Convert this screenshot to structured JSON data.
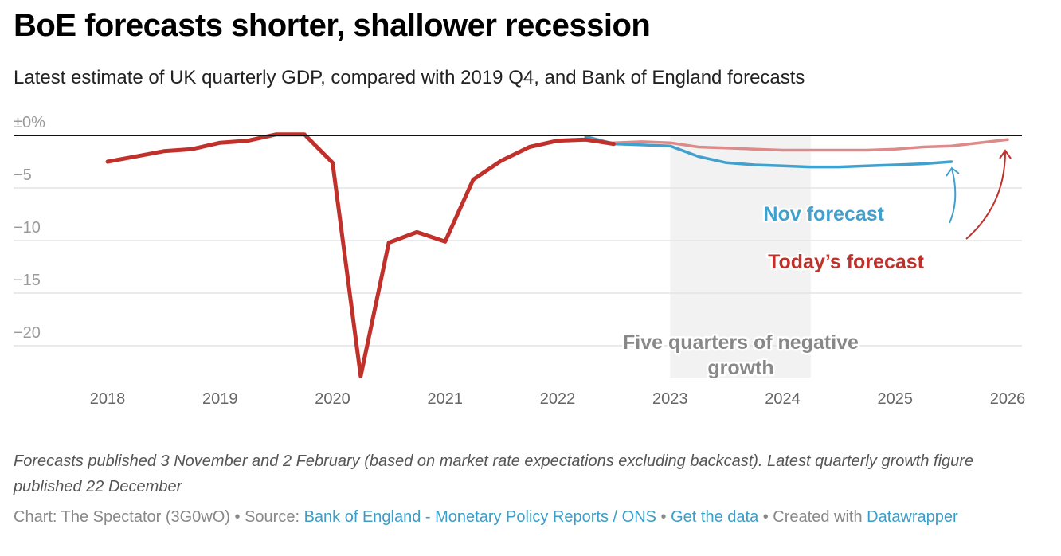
{
  "header": {
    "title": "BoE forecasts shorter, shallower recession",
    "subtitle": "Latest estimate of UK quarterly GDP, compared with 2019 Q4, and Bank of England forecasts"
  },
  "colors": {
    "actual": "#c0312b",
    "nov_forecast": "#41a0cc",
    "today_forecast": "#dc8a8a",
    "shade": "#f2f2f2",
    "gridline": "#e3e3e3",
    "zero_line": "#111111",
    "link": "#3a9ec8"
  },
  "chart_data": {
    "type": "line",
    "title": "BoE forecasts shorter, shallower recession",
    "subtitle": "Latest estimate of UK quarterly GDP, compared with 2019 Q4, and Bank of England forecasts",
    "xlabel": "",
    "ylabel": "",
    "x_unit": "year (quarterly points)",
    "xlim": [
      2018,
      2026
    ],
    "ylim": [
      -23.5,
      0.5
    ],
    "x_ticks": [
      2018,
      2019,
      2020,
      2021,
      2022,
      2023,
      2024,
      2025,
      2026
    ],
    "x_tick_labels": [
      "2018",
      "2019",
      "2020",
      "2021",
      "2022",
      "2023",
      "2024",
      "2025",
      "2026"
    ],
    "y_ticks": [
      0,
      -5,
      -10,
      -15,
      -20
    ],
    "y_tick_labels": [
      "±0%",
      "−5",
      "−10",
      "−15",
      "−20"
    ],
    "grid": true,
    "legend": "inline-annotations",
    "series": [
      {
        "name": "Latest estimate",
        "key": "actual",
        "x": [
          2018.0,
          2018.25,
          2018.5,
          2018.75,
          2019.0,
          2019.25,
          2019.5,
          2019.75,
          2020.0,
          2020.25,
          2020.5,
          2020.75,
          2021.0,
          2021.25,
          2021.5,
          2021.75,
          2022.0,
          2022.25,
          2022.5
        ],
        "values": [
          -2.5,
          -2.0,
          -1.5,
          -1.3,
          -0.7,
          -0.5,
          0.1,
          0.1,
          -2.6,
          -22.9,
          -10.2,
          -9.2,
          -10.1,
          -4.2,
          -2.4,
          -1.1,
          -0.5,
          -0.4,
          -0.8
        ]
      },
      {
        "name": "Nov forecast",
        "key": "nov_forecast",
        "x": [
          2022.25,
          2022.5,
          2022.75,
          2023.0,
          2023.25,
          2023.5,
          2023.75,
          2024.0,
          2024.25,
          2024.5,
          2024.75,
          2025.0,
          2025.25,
          2025.5
        ],
        "values": [
          -0.1,
          -0.8,
          -0.9,
          -1.0,
          -2.0,
          -2.6,
          -2.8,
          -2.9,
          -3.0,
          -3.0,
          -2.9,
          -2.8,
          -2.7,
          -2.5
        ]
      },
      {
        "name": "Today's forecast",
        "key": "today_forecast",
        "x": [
          2022.5,
          2022.75,
          2023.0,
          2023.25,
          2023.5,
          2023.75,
          2024.0,
          2024.25,
          2024.5,
          2024.75,
          2025.0,
          2025.25,
          2025.5,
          2025.75,
          2026.0
        ],
        "values": [
          -0.7,
          -0.6,
          -0.7,
          -1.1,
          -1.2,
          -1.3,
          -1.4,
          -1.4,
          -1.4,
          -1.4,
          -1.3,
          -1.1,
          -1.0,
          -0.7,
          -0.4
        ]
      }
    ],
    "shaded_range": {
      "x_start": 2023.0,
      "x_end": 2024.25,
      "label": "Five quarters of negative growth"
    },
    "annotations": [
      {
        "text": "Nov forecast",
        "series": "nov_forecast"
      },
      {
        "text": "Today’s forecast",
        "series": "today_forecast"
      }
    ]
  },
  "annotations": {
    "shade_label_line1": "Five quarters of negative",
    "shade_label_line2": "growth",
    "nov_label": "Nov forecast",
    "today_label": "Today’s forecast"
  },
  "notes": "Forecasts published 3 November and 2 February (based on market rate expectations excluding backcast). Latest quarterly growth figure published 22 December",
  "footer": {
    "chart_prefix": "Chart: The Spectator (3G0wO) • Source: ",
    "source_link": "Bank of England - Monetary Policy Reports / ONS",
    "sep1": " • ",
    "data_link": "Get the data",
    "created_prefix": " • Created with ",
    "datawrapper_link": "Datawrapper"
  }
}
